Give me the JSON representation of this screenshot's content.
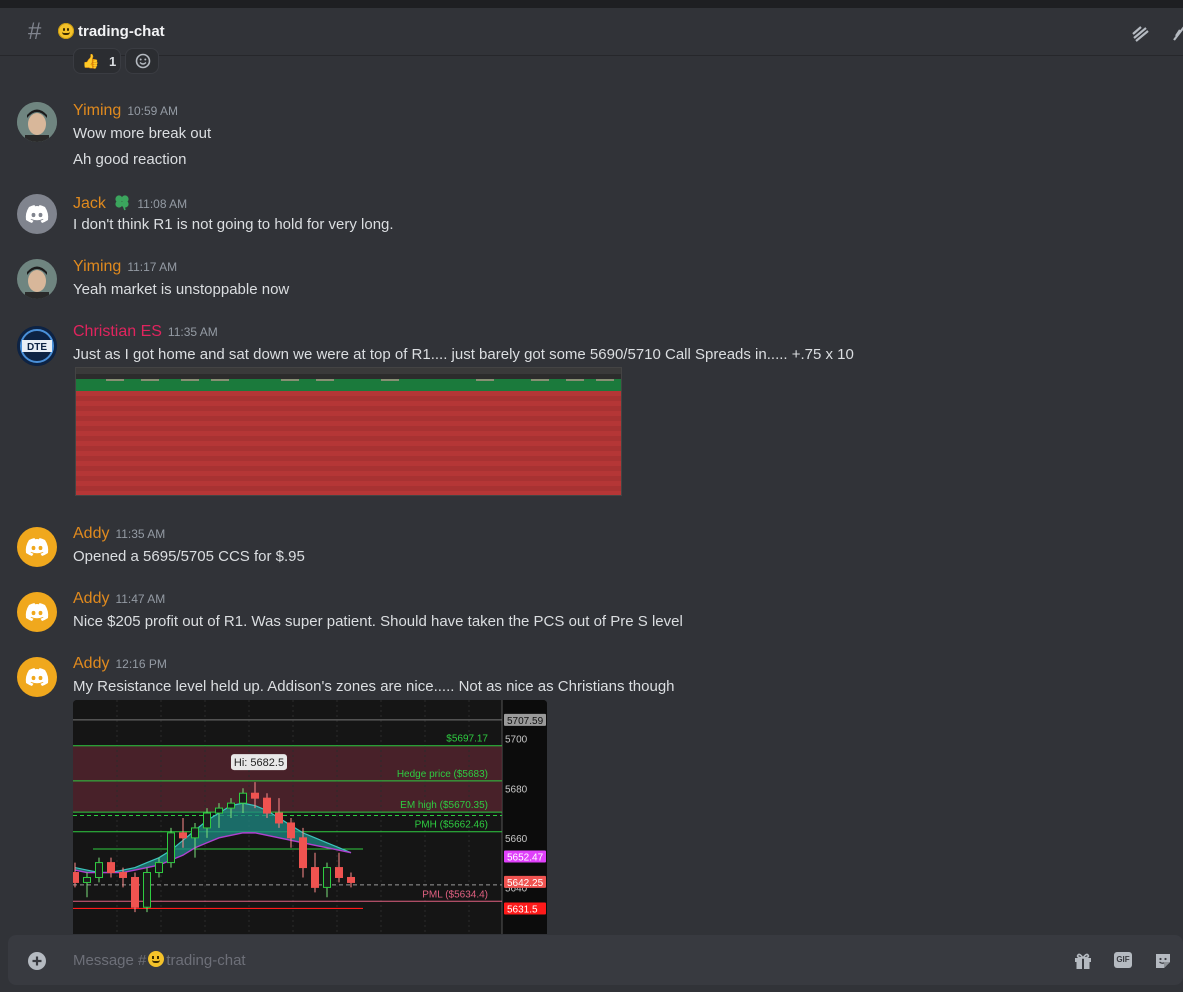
{
  "channel": {
    "name": "trading-chat",
    "icon": "hash-icon",
    "emoji": "grinning-face-emoji"
  },
  "header_icons": [
    "threads-icon",
    "mute-icon"
  ],
  "reactions": [
    {
      "emoji": "thumbs-up-emoji",
      "count": "1"
    },
    {
      "emoji": "add-reaction-icon",
      "count": ""
    }
  ],
  "messages": [
    {
      "author": "Yiming",
      "author_color": "#e08a1e",
      "time": "10:59 AM",
      "avatar": "photo",
      "lines": [
        "Wow more break out",
        "Ah good reaction"
      ]
    },
    {
      "author": "Jack",
      "author_color": "#e08a1e",
      "time": "11:08 AM",
      "avatar": "discord-gray",
      "badge": "clover-badge-icon",
      "lines": [
        "I don't think R1 is not going to hold for very long."
      ]
    },
    {
      "author": "Yiming",
      "author_color": "#e08a1e",
      "time": "11:17 AM",
      "avatar": "photo",
      "lines": [
        "Yeah market is unstoppable now"
      ]
    },
    {
      "author": "Christian ES",
      "author_color": "#e0245e",
      "time": "11:35 AM",
      "avatar": "dte-logo",
      "avatar_text": "DTE",
      "lines": [
        "Just as I got home and sat down we were at top of R1.... just barely got some 5690/5710 Call Spreads in..... +.75 x 10"
      ],
      "attachment": "order-table-screenshot"
    },
    {
      "author": "Addy",
      "author_color": "#e08a1e",
      "time": "11:35 AM",
      "avatar": "discord-orange",
      "lines": [
        "Opened a 5695/5705 CCS for $.95"
      ]
    },
    {
      "author": "Addy",
      "author_color": "#e08a1e",
      "time": "11:47 AM",
      "avatar": "discord-orange",
      "lines": [
        "Nice $205 profit out of R1.  Was super patient.  Should have taken the PCS out of Pre S level"
      ]
    },
    {
      "author": "Addy",
      "author_color": "#e08a1e",
      "time": "12:16 PM",
      "avatar": "discord-orange",
      "lines": [
        "My Resistance level held up.  Addison's zones are nice.....  Not as nice as Christians though"
      ],
      "attachment": "price-chart-screenshot"
    }
  ],
  "chart_data": {
    "type": "candlestick",
    "y_ticks": [
      "5700",
      "5680",
      "5660",
      "5640"
    ],
    "price_badges": [
      {
        "label": "5707.59",
        "color": "#9a9a9a"
      },
      {
        "label": "5652.47",
        "color": "#e040fb"
      },
      {
        "label": "5642.25",
        "color": "#ef5350"
      },
      {
        "label": "5631.5",
        "color": "#ff1a1a"
      }
    ],
    "levels": [
      {
        "label": "$5697.17",
        "value": 5697.17,
        "color": "#2ecc40"
      },
      {
        "label": "Hedge price ($5683)",
        "value": 5683,
        "color": "#2ecc40"
      },
      {
        "label": "EM high ($5670.35)",
        "value": 5670.35,
        "color": "#2ecc40"
      },
      {
        "label": "PMH ($5662.46)",
        "value": 5662.46,
        "color": "#2ecc40"
      },
      {
        "label": "PML ($5634.4)",
        "value": 5634.4,
        "color": "#e06080"
      }
    ],
    "tooltip": "Hi: 5682.5",
    "ylim": [
      5622,
      5714
    ]
  },
  "composer": {
    "placeholder_prefix": "Message #",
    "placeholder_channel": "trading-chat",
    "icons": [
      "gift-icon",
      "gif-icon",
      "sticker-icon"
    ],
    "gif_label": "GIF"
  }
}
